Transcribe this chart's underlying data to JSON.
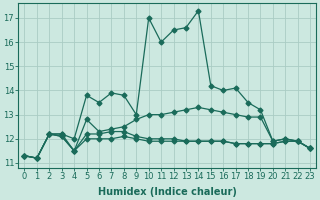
{
  "xlabel": "Humidex (Indice chaleur)",
  "background_color": "#cce8e0",
  "grid_color": "#aaccC4",
  "line_color": "#1a6b5a",
  "xlim": [
    -0.5,
    23.5
  ],
  "ylim": [
    10.8,
    17.6
  ],
  "yticks": [
    11,
    12,
    13,
    14,
    15,
    16,
    17
  ],
  "xticks": [
    0,
    1,
    2,
    3,
    4,
    5,
    6,
    7,
    8,
    9,
    10,
    11,
    12,
    13,
    14,
    15,
    16,
    17,
    18,
    19,
    20,
    21,
    22,
    23
  ],
  "series": [
    [
      11.3,
      11.2,
      12.2,
      12.2,
      12.0,
      13.8,
      13.5,
      13.9,
      13.8,
      13.0,
      17.0,
      16.0,
      16.5,
      16.6,
      17.3,
      14.2,
      14.0,
      14.1,
      13.5,
      13.2,
      11.9,
      12.0,
      11.9,
      11.6
    ],
    [
      11.3,
      11.2,
      12.2,
      12.2,
      11.5,
      12.8,
      12.3,
      12.4,
      12.5,
      12.8,
      13.0,
      13.0,
      13.1,
      13.2,
      13.3,
      13.2,
      13.1,
      13.0,
      12.9,
      12.9,
      11.9,
      12.0,
      11.9,
      11.6
    ],
    [
      11.3,
      11.2,
      12.2,
      12.1,
      11.5,
      12.2,
      12.2,
      12.3,
      12.3,
      12.1,
      12.0,
      12.0,
      12.0,
      11.9,
      11.9,
      11.9,
      11.9,
      11.8,
      11.8,
      11.8,
      11.8,
      11.9,
      11.9,
      11.6
    ],
    [
      11.3,
      11.2,
      12.2,
      12.1,
      11.5,
      12.0,
      12.0,
      12.0,
      12.1,
      12.0,
      11.9,
      11.9,
      11.9,
      11.9,
      11.9,
      11.9,
      11.9,
      11.8,
      11.8,
      11.8,
      11.8,
      11.9,
      11.9,
      11.6
    ]
  ],
  "marker": "D",
  "markersize": 2.5,
  "linewidth": 0.9,
  "label_fontsize": 7,
  "tick_fontsize": 6
}
